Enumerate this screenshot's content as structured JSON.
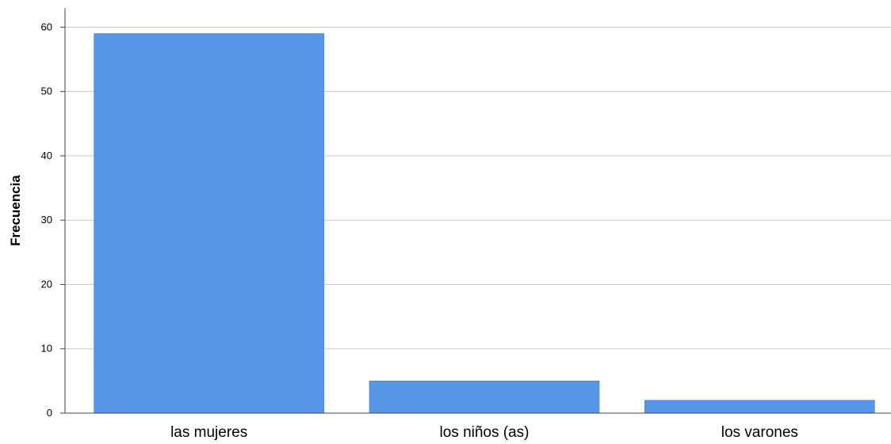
{
  "chart_data": {
    "type": "bar",
    "title": "",
    "xlabel": "",
    "ylabel": "Frecuencia",
    "categories": [
      "las mujeres",
      "los niños (as)",
      "los varones"
    ],
    "values": [
      59,
      5,
      2
    ],
    "ylim": [
      0,
      63
    ],
    "yticks": [
      0,
      10,
      20,
      30,
      40,
      50,
      60
    ],
    "grid": true,
    "bar_color": "#5596e6",
    "bar_stroke": "#ffffff",
    "axis_color": "#444444",
    "grid_color": "#cccccc",
    "text_color": "#000000"
  }
}
